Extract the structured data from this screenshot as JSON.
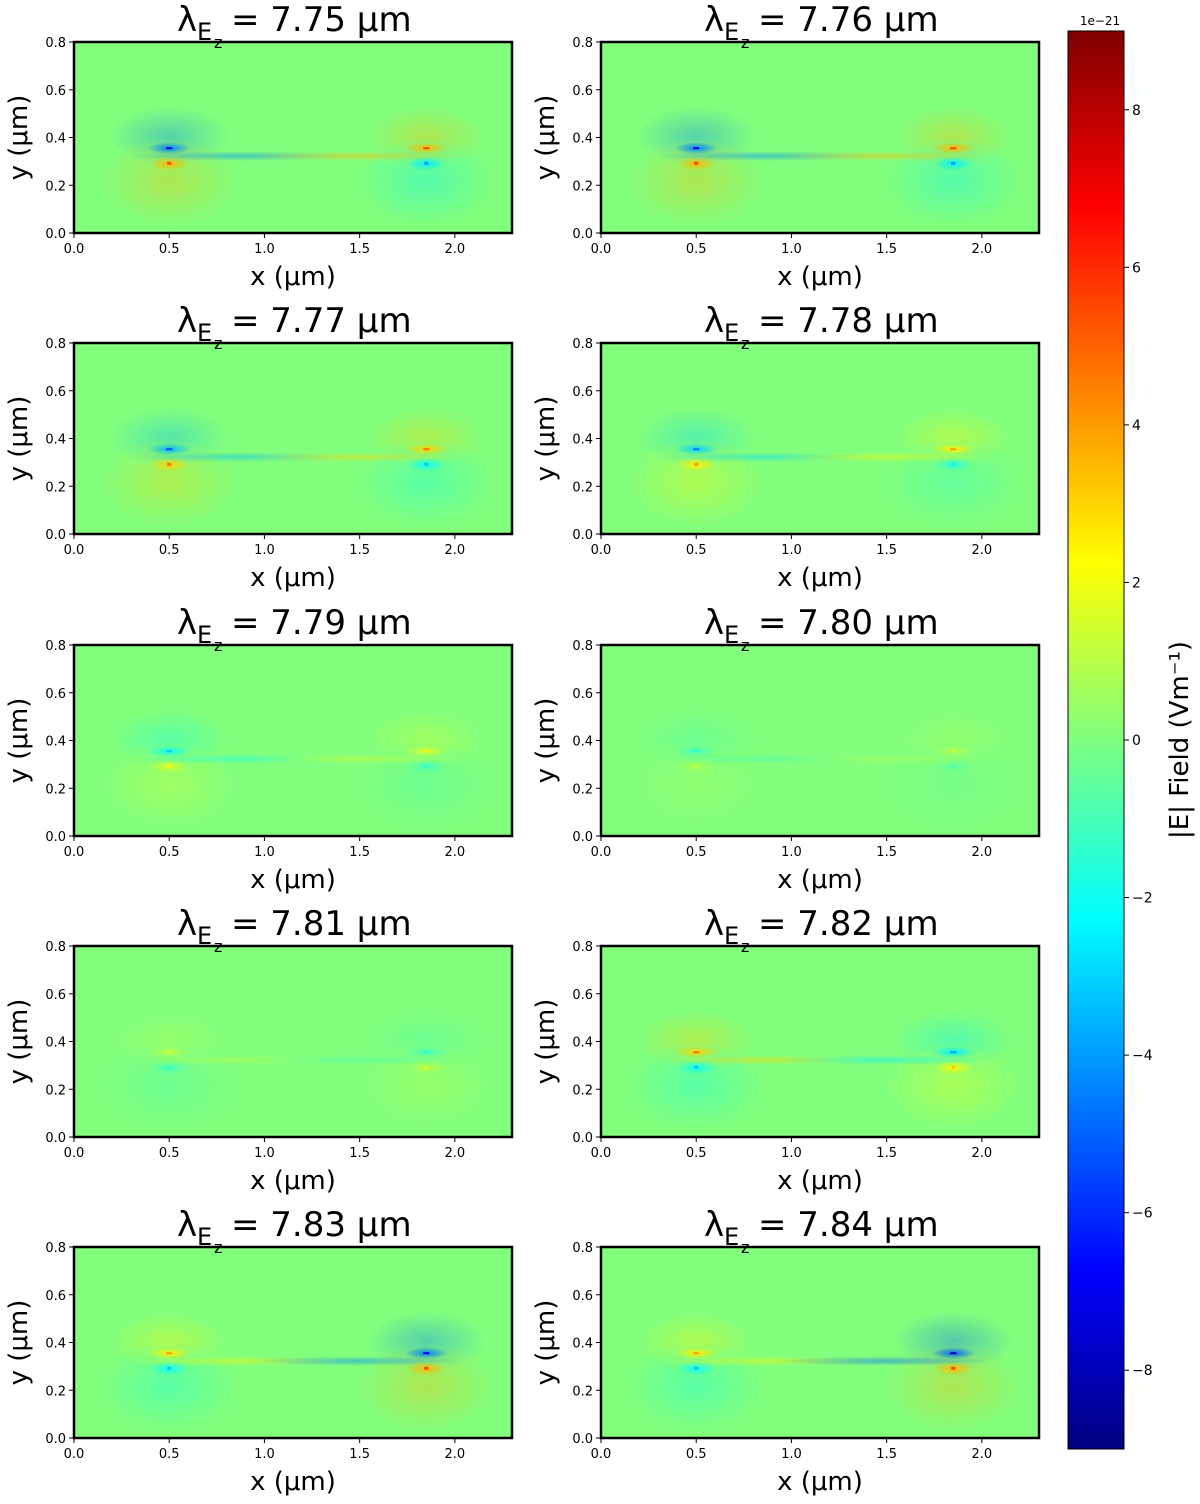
{
  "colorbar": {
    "label": "|E|  Field (Vm⁻¹)",
    "offset_text": "1e−21",
    "vmin": -9,
    "vmax": 9,
    "ticks": [
      8,
      6,
      4,
      2,
      0,
      -2,
      -4,
      -6,
      -8
    ],
    "tick_labels": [
      "8",
      "6",
      "4",
      "2",
      "0",
      "−2",
      "−4",
      "−6",
      "−8"
    ],
    "colormap": "jet",
    "colors": [
      "#00007f",
      "#0000ff",
      "#007fff",
      "#00ffff",
      "#7fff7f",
      "#ffff00",
      "#ff7f00",
      "#ff0000",
      "#7f0000"
    ]
  },
  "chart_data": [
    {
      "type": "heatmap",
      "title_prefix": "λ",
      "title_sub": "E",
      "title_subsub": "z",
      "title_value": "= 7.75 μm",
      "xlabel": "x (μm)",
      "ylabel": "y (μm)",
      "xlim": [
        0,
        2.3
      ],
      "ylim": [
        0,
        0.8
      ],
      "xticks": [
        0.0,
        0.5,
        1.0,
        1.5,
        2.0
      ],
      "xtick_labels": [
        "0.0",
        "0.5",
        "1.0",
        "1.5",
        "2.0"
      ],
      "yticks": [
        0.0,
        0.2,
        0.4,
        0.6,
        0.8
      ],
      "ytick_labels": [
        "0.0",
        "0.2",
        "0.4",
        "0.6",
        "0.8"
      ],
      "features": [
        {
          "x": 0.5,
          "y_top": 0.355,
          "y_bot": 0.29,
          "top": -4.5,
          "bot": 3.5
        },
        {
          "x": 1.85,
          "y_top": 0.355,
          "y_bot": 0.29,
          "top": 3.5,
          "bot": -2.5
        }
      ]
    },
    {
      "type": "heatmap",
      "title_prefix": "λ",
      "title_sub": "E",
      "title_subsub": "z",
      "title_value": "= 7.76 μm",
      "xlabel": "x (μm)",
      "ylabel": "y (μm)",
      "xlim": [
        0,
        2.3
      ],
      "ylim": [
        0,
        0.8
      ],
      "xticks": [
        0.0,
        0.5,
        1.0,
        1.5,
        2.0
      ],
      "xtick_labels": [
        "0.0",
        "0.5",
        "1.0",
        "1.5",
        "2.0"
      ],
      "yticks": [
        0.0,
        0.2,
        0.4,
        0.6,
        0.8
      ],
      "ytick_labels": [
        "0.0",
        "0.2",
        "0.4",
        "0.6",
        "0.8"
      ],
      "features": [
        {
          "x": 0.5,
          "y_top": 0.355,
          "y_bot": 0.29,
          "top": -4.5,
          "bot": 3.5
        },
        {
          "x": 1.85,
          "y_top": 0.355,
          "y_bot": 0.29,
          "top": 3.5,
          "bot": -2.5
        }
      ]
    },
    {
      "type": "heatmap",
      "title_prefix": "λ",
      "title_sub": "E",
      "title_subsub": "z",
      "title_value": "= 7.77 μm",
      "xlabel": "x (μm)",
      "ylabel": "y (μm)",
      "xlim": [
        0,
        2.3
      ],
      "ylim": [
        0,
        0.8
      ],
      "xticks": [
        0.0,
        0.5,
        1.0,
        1.5,
        2.0
      ],
      "xtick_labels": [
        "0.0",
        "0.5",
        "1.0",
        "1.5",
        "2.0"
      ],
      "yticks": [
        0.0,
        0.2,
        0.4,
        0.6,
        0.8
      ],
      "ytick_labels": [
        "0.0",
        "0.2",
        "0.4",
        "0.6",
        "0.8"
      ],
      "features": [
        {
          "x": 0.5,
          "y_top": 0.355,
          "y_bot": 0.29,
          "top": -3.5,
          "bot": 3.0
        },
        {
          "x": 1.85,
          "y_top": 0.355,
          "y_bot": 0.29,
          "top": 3.0,
          "bot": -2.0
        }
      ]
    },
    {
      "type": "heatmap",
      "title_prefix": "λ",
      "title_sub": "E",
      "title_subsub": "z",
      "title_value": "= 7.78 μm",
      "xlabel": "x (μm)",
      "ylabel": "y (μm)",
      "xlim": [
        0,
        2.3
      ],
      "ylim": [
        0,
        0.8
      ],
      "xticks": [
        0.0,
        0.5,
        1.0,
        1.5,
        2.0
      ],
      "xtick_labels": [
        "0.0",
        "0.5",
        "1.0",
        "1.5",
        "2.0"
      ],
      "yticks": [
        0.0,
        0.2,
        0.4,
        0.6,
        0.8
      ],
      "ytick_labels": [
        "0.0",
        "0.2",
        "0.4",
        "0.6",
        "0.8"
      ],
      "features": [
        {
          "x": 0.5,
          "y_top": 0.355,
          "y_bot": 0.29,
          "top": -3.0,
          "bot": 2.5
        },
        {
          "x": 1.85,
          "y_top": 0.355,
          "y_bot": 0.29,
          "top": 2.5,
          "bot": -1.5
        }
      ]
    },
    {
      "type": "heatmap",
      "title_prefix": "λ",
      "title_sub": "E",
      "title_subsub": "z",
      "title_value": "= 7.79 μm",
      "xlabel": "x (μm)",
      "ylabel": "y (μm)",
      "xlim": [
        0,
        2.3
      ],
      "ylim": [
        0,
        0.8
      ],
      "xticks": [
        0.0,
        0.5,
        1.0,
        1.5,
        2.0
      ],
      "xtick_labels": [
        "0.0",
        "0.5",
        "1.0",
        "1.5",
        "2.0"
      ],
      "yticks": [
        0.0,
        0.2,
        0.4,
        0.6,
        0.8
      ],
      "ytick_labels": [
        "0.0",
        "0.2",
        "0.4",
        "0.6",
        "0.8"
      ],
      "features": [
        {
          "x": 0.5,
          "y_top": 0.355,
          "y_bot": 0.29,
          "top": -2.0,
          "bot": 1.5
        },
        {
          "x": 1.85,
          "y_top": 0.355,
          "y_bot": 0.29,
          "top": 1.5,
          "bot": -1.0
        }
      ]
    },
    {
      "type": "heatmap",
      "title_prefix": "λ",
      "title_sub": "E",
      "title_subsub": "z",
      "title_value": "= 7.80 μm",
      "xlabel": "x (μm)",
      "ylabel": "y (μm)",
      "xlim": [
        0,
        2.3
      ],
      "ylim": [
        0,
        0.8
      ],
      "xticks": [
        0.0,
        0.5,
        1.0,
        1.5,
        2.0
      ],
      "xtick_labels": [
        "0.0",
        "0.5",
        "1.0",
        "1.5",
        "2.0"
      ],
      "yticks": [
        0.0,
        0.2,
        0.4,
        0.6,
        0.8
      ],
      "ytick_labels": [
        "0.0",
        "0.2",
        "0.4",
        "0.6",
        "0.8"
      ],
      "features": [
        {
          "x": 0.5,
          "y_top": 0.355,
          "y_bot": 0.29,
          "top": -1.0,
          "bot": 0.7
        },
        {
          "x": 1.85,
          "y_top": 0.355,
          "y_bot": 0.29,
          "top": 0.8,
          "bot": -0.5
        }
      ]
    },
    {
      "type": "heatmap",
      "title_prefix": "λ",
      "title_sub": "E",
      "title_subsub": "z",
      "title_value": "= 7.81 μm",
      "xlabel": "x (μm)",
      "ylabel": "y (μm)",
      "xlim": [
        0,
        2.3
      ],
      "ylim": [
        0,
        0.8
      ],
      "xticks": [
        0.0,
        0.5,
        1.0,
        1.5,
        2.0
      ],
      "xtick_labels": [
        "0.0",
        "0.5",
        "1.0",
        "1.5",
        "2.0"
      ],
      "yticks": [
        0.0,
        0.2,
        0.4,
        0.6,
        0.8
      ],
      "ytick_labels": [
        "0.0",
        "0.2",
        "0.4",
        "0.6",
        "0.8"
      ],
      "features": [
        {
          "x": 0.5,
          "y_top": 0.355,
          "y_bot": 0.29,
          "top": 1.0,
          "bot": -1.0
        },
        {
          "x": 1.85,
          "y_top": 0.355,
          "y_bot": 0.29,
          "top": -1.0,
          "bot": 1.0
        }
      ]
    },
    {
      "type": "heatmap",
      "title_prefix": "λ",
      "title_sub": "E",
      "title_subsub": "z",
      "title_value": "= 7.82 μm",
      "xlabel": "x (μm)",
      "ylabel": "y (μm)",
      "xlim": [
        0,
        2.3
      ],
      "ylim": [
        0,
        0.8
      ],
      "xticks": [
        0.0,
        0.5,
        1.0,
        1.5,
        2.0
      ],
      "xtick_labels": [
        "0.0",
        "0.5",
        "1.0",
        "1.5",
        "2.0"
      ],
      "yticks": [
        0.0,
        0.2,
        0.4,
        0.6,
        0.8
      ],
      "ytick_labels": [
        "0.0",
        "0.2",
        "0.4",
        "0.6",
        "0.8"
      ],
      "features": [
        {
          "x": 0.5,
          "y_top": 0.355,
          "y_bot": 0.29,
          "top": 3.0,
          "bot": -2.0
        },
        {
          "x": 1.85,
          "y_top": 0.355,
          "y_bot": 0.29,
          "top": -2.5,
          "bot": 2.0
        }
      ]
    },
    {
      "type": "heatmap",
      "title_prefix": "λ",
      "title_sub": "E",
      "title_subsub": "z",
      "title_value": "= 7.83 μm",
      "xlabel": "x (μm)",
      "ylabel": "y (μm)",
      "xlim": [
        0,
        2.3
      ],
      "ylim": [
        0,
        0.8
      ],
      "xticks": [
        0.0,
        0.5,
        1.0,
        1.5,
        2.0
      ],
      "xtick_labels": [
        "0.0",
        "0.5",
        "1.0",
        "1.5",
        "2.0"
      ],
      "yticks": [
        0.0,
        0.2,
        0.4,
        0.6,
        0.8
      ],
      "ytick_labels": [
        "0.0",
        "0.2",
        "0.4",
        "0.6",
        "0.8"
      ],
      "features": [
        {
          "x": 0.5,
          "y_top": 0.355,
          "y_bot": 0.29,
          "top": 2.5,
          "bot": -2.0
        },
        {
          "x": 1.85,
          "y_top": 0.355,
          "y_bot": 0.29,
          "top": -4.5,
          "bot": 3.5
        }
      ]
    },
    {
      "type": "heatmap",
      "title_prefix": "λ",
      "title_sub": "E",
      "title_subsub": "z",
      "title_value": "= 7.84 μm",
      "xlabel": "x (μm)",
      "ylabel": "y (μm)",
      "xlim": [
        0,
        2.3
      ],
      "ylim": [
        0,
        0.8
      ],
      "xticks": [
        0.0,
        0.5,
        1.0,
        1.5,
        2.0
      ],
      "xtick_labels": [
        "0.0",
        "0.5",
        "1.0",
        "1.5",
        "2.0"
      ],
      "yticks": [
        0.0,
        0.2,
        0.4,
        0.6,
        0.8
      ],
      "ytick_labels": [
        "0.0",
        "0.2",
        "0.4",
        "0.6",
        "0.8"
      ],
      "features": [
        {
          "x": 0.5,
          "y_top": 0.355,
          "y_bot": 0.29,
          "top": 2.5,
          "bot": -2.0
        },
        {
          "x": 1.85,
          "y_top": 0.355,
          "y_bot": 0.29,
          "top": -5.0,
          "bot": 3.5
        }
      ]
    }
  ]
}
